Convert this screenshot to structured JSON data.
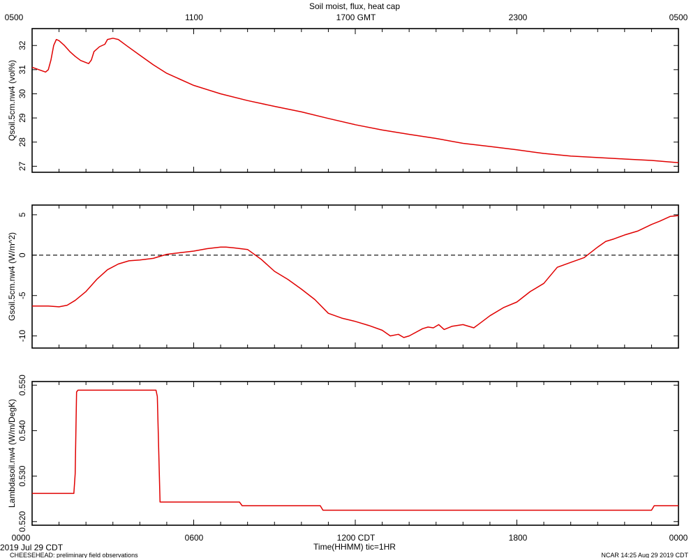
{
  "header": {
    "title": "Soil moist, flux, heat cap",
    "top_ticks": [
      "0500",
      "1100",
      "1700 GMT",
      "2300",
      "0500"
    ]
  },
  "footer": {
    "bottom_ticks": [
      "0000",
      "0600",
      "1200 CDT",
      "1800",
      "0000"
    ],
    "xlabel": "Time(HHMM)  tic=1HR",
    "date_label": "2019 Jul 29 CDT",
    "project_label": "CHEESEHEAD: preliminary field observations",
    "credit_label": "NCAR 14:25 Aug 29 2019 CDT"
  },
  "chart_data": [
    {
      "type": "line",
      "name": "panel-qsoil",
      "ylabel": "Qsoil.5cm.nw4 (vol%)",
      "ylim": [
        26.75,
        32.7
      ],
      "yticks": [
        "27",
        "28",
        "29",
        "30",
        "31",
        "32"
      ],
      "xlim": [
        0,
        24
      ],
      "color": "#e00000",
      "x": [
        0,
        0.5,
        0.6,
        0.7,
        0.8,
        0.9,
        1.0,
        1.2,
        1.4,
        1.6,
        1.8,
        2.1,
        2.2,
        2.3,
        2.5,
        2.7,
        2.8,
        3.0,
        3.2,
        3.5,
        4.0,
        4.5,
        5.0,
        6.0,
        7.0,
        8.0,
        9.0,
        10.0,
        11.0,
        12.0,
        13.0,
        14.0,
        15.0,
        16.0,
        17.0,
        18.0,
        19.0,
        20.0,
        21.0,
        22.0,
        23.0,
        24.0
      ],
      "y": [
        31.1,
        30.9,
        31.0,
        31.4,
        32.0,
        32.25,
        32.2,
        32.0,
        31.75,
        31.55,
        31.38,
        31.25,
        31.4,
        31.75,
        31.95,
        32.05,
        32.25,
        32.3,
        32.25,
        32.0,
        31.6,
        31.2,
        30.85,
        30.35,
        30.0,
        29.72,
        29.48,
        29.25,
        28.98,
        28.72,
        28.5,
        28.32,
        28.15,
        27.95,
        27.82,
        27.68,
        27.53,
        27.42,
        27.36,
        27.3,
        27.24,
        27.15
      ]
    },
    {
      "type": "line",
      "name": "panel-gsoil",
      "ylabel": "Gsoil.5cm.nw4 (W/m^2)",
      "ylim": [
        -11.5,
        6.2
      ],
      "yticks": [
        "5",
        "0",
        "-5",
        "-10"
      ],
      "zero_line": true,
      "xlim": [
        0,
        24
      ],
      "color": "#e00000",
      "x": [
        0,
        0.6,
        1.0,
        1.3,
        1.6,
        2.0,
        2.4,
        2.8,
        3.2,
        3.6,
        4.0,
        4.5,
        5.0,
        5.5,
        6.0,
        6.5,
        7.0,
        7.2,
        7.5,
        8.0,
        8.5,
        9.0,
        9.5,
        10.0,
        10.5,
        11.0,
        11.5,
        12.0,
        12.5,
        13.0,
        13.3,
        13.6,
        13.8,
        14.0,
        14.5,
        14.7,
        14.9,
        15.1,
        15.3,
        15.6,
        16.0,
        16.4,
        16.6,
        17.0,
        17.5,
        18.0,
        18.5,
        19.0,
        19.5,
        20.0,
        20.5,
        21.0,
        21.3,
        21.6,
        22.0,
        22.5,
        23.0,
        23.3,
        23.7,
        24.0
      ],
      "y": [
        -6.3,
        -6.3,
        -6.4,
        -6.2,
        -5.6,
        -4.5,
        -3.0,
        -1.8,
        -1.1,
        -0.7,
        -0.6,
        -0.4,
        0.1,
        0.3,
        0.5,
        0.8,
        1.0,
        1.0,
        0.9,
        0.7,
        -0.5,
        -2.0,
        -3.0,
        -4.2,
        -5.5,
        -7.2,
        -7.8,
        -8.2,
        -8.7,
        -9.3,
        -10.0,
        -9.8,
        -10.2,
        -10.0,
        -9.1,
        -8.9,
        -9.0,
        -8.6,
        -9.2,
        -8.8,
        -8.6,
        -9.0,
        -8.5,
        -7.5,
        -6.5,
        -5.8,
        -4.5,
        -3.5,
        -1.5,
        -0.9,
        -0.3,
        1.0,
        1.7,
        2.0,
        2.5,
        3.0,
        3.8,
        4.2,
        4.8,
        4.9
      ]
    },
    {
      "type": "line",
      "name": "panel-lambda",
      "ylabel": "Lambdasoil.nw4 (W/m/DegK)",
      "ylim": [
        0.5192,
        0.5508
      ],
      "yticks": [
        "0.550",
        "0.540",
        "0.530",
        "0.520"
      ],
      "xlim": [
        0,
        24
      ],
      "color": "#e00000",
      "x": [
        0,
        1.55,
        1.6,
        1.65,
        1.7,
        4.6,
        4.65,
        4.75,
        7.7,
        7.8,
        10.7,
        10.8,
        23.0,
        23.1,
        24.0
      ],
      "y": [
        0.5262,
        0.5262,
        0.5305,
        0.5485,
        0.5489,
        0.5489,
        0.5475,
        0.5243,
        0.5243,
        0.5235,
        0.5235,
        0.5225,
        0.5225,
        0.5235,
        0.5235
      ]
    }
  ]
}
